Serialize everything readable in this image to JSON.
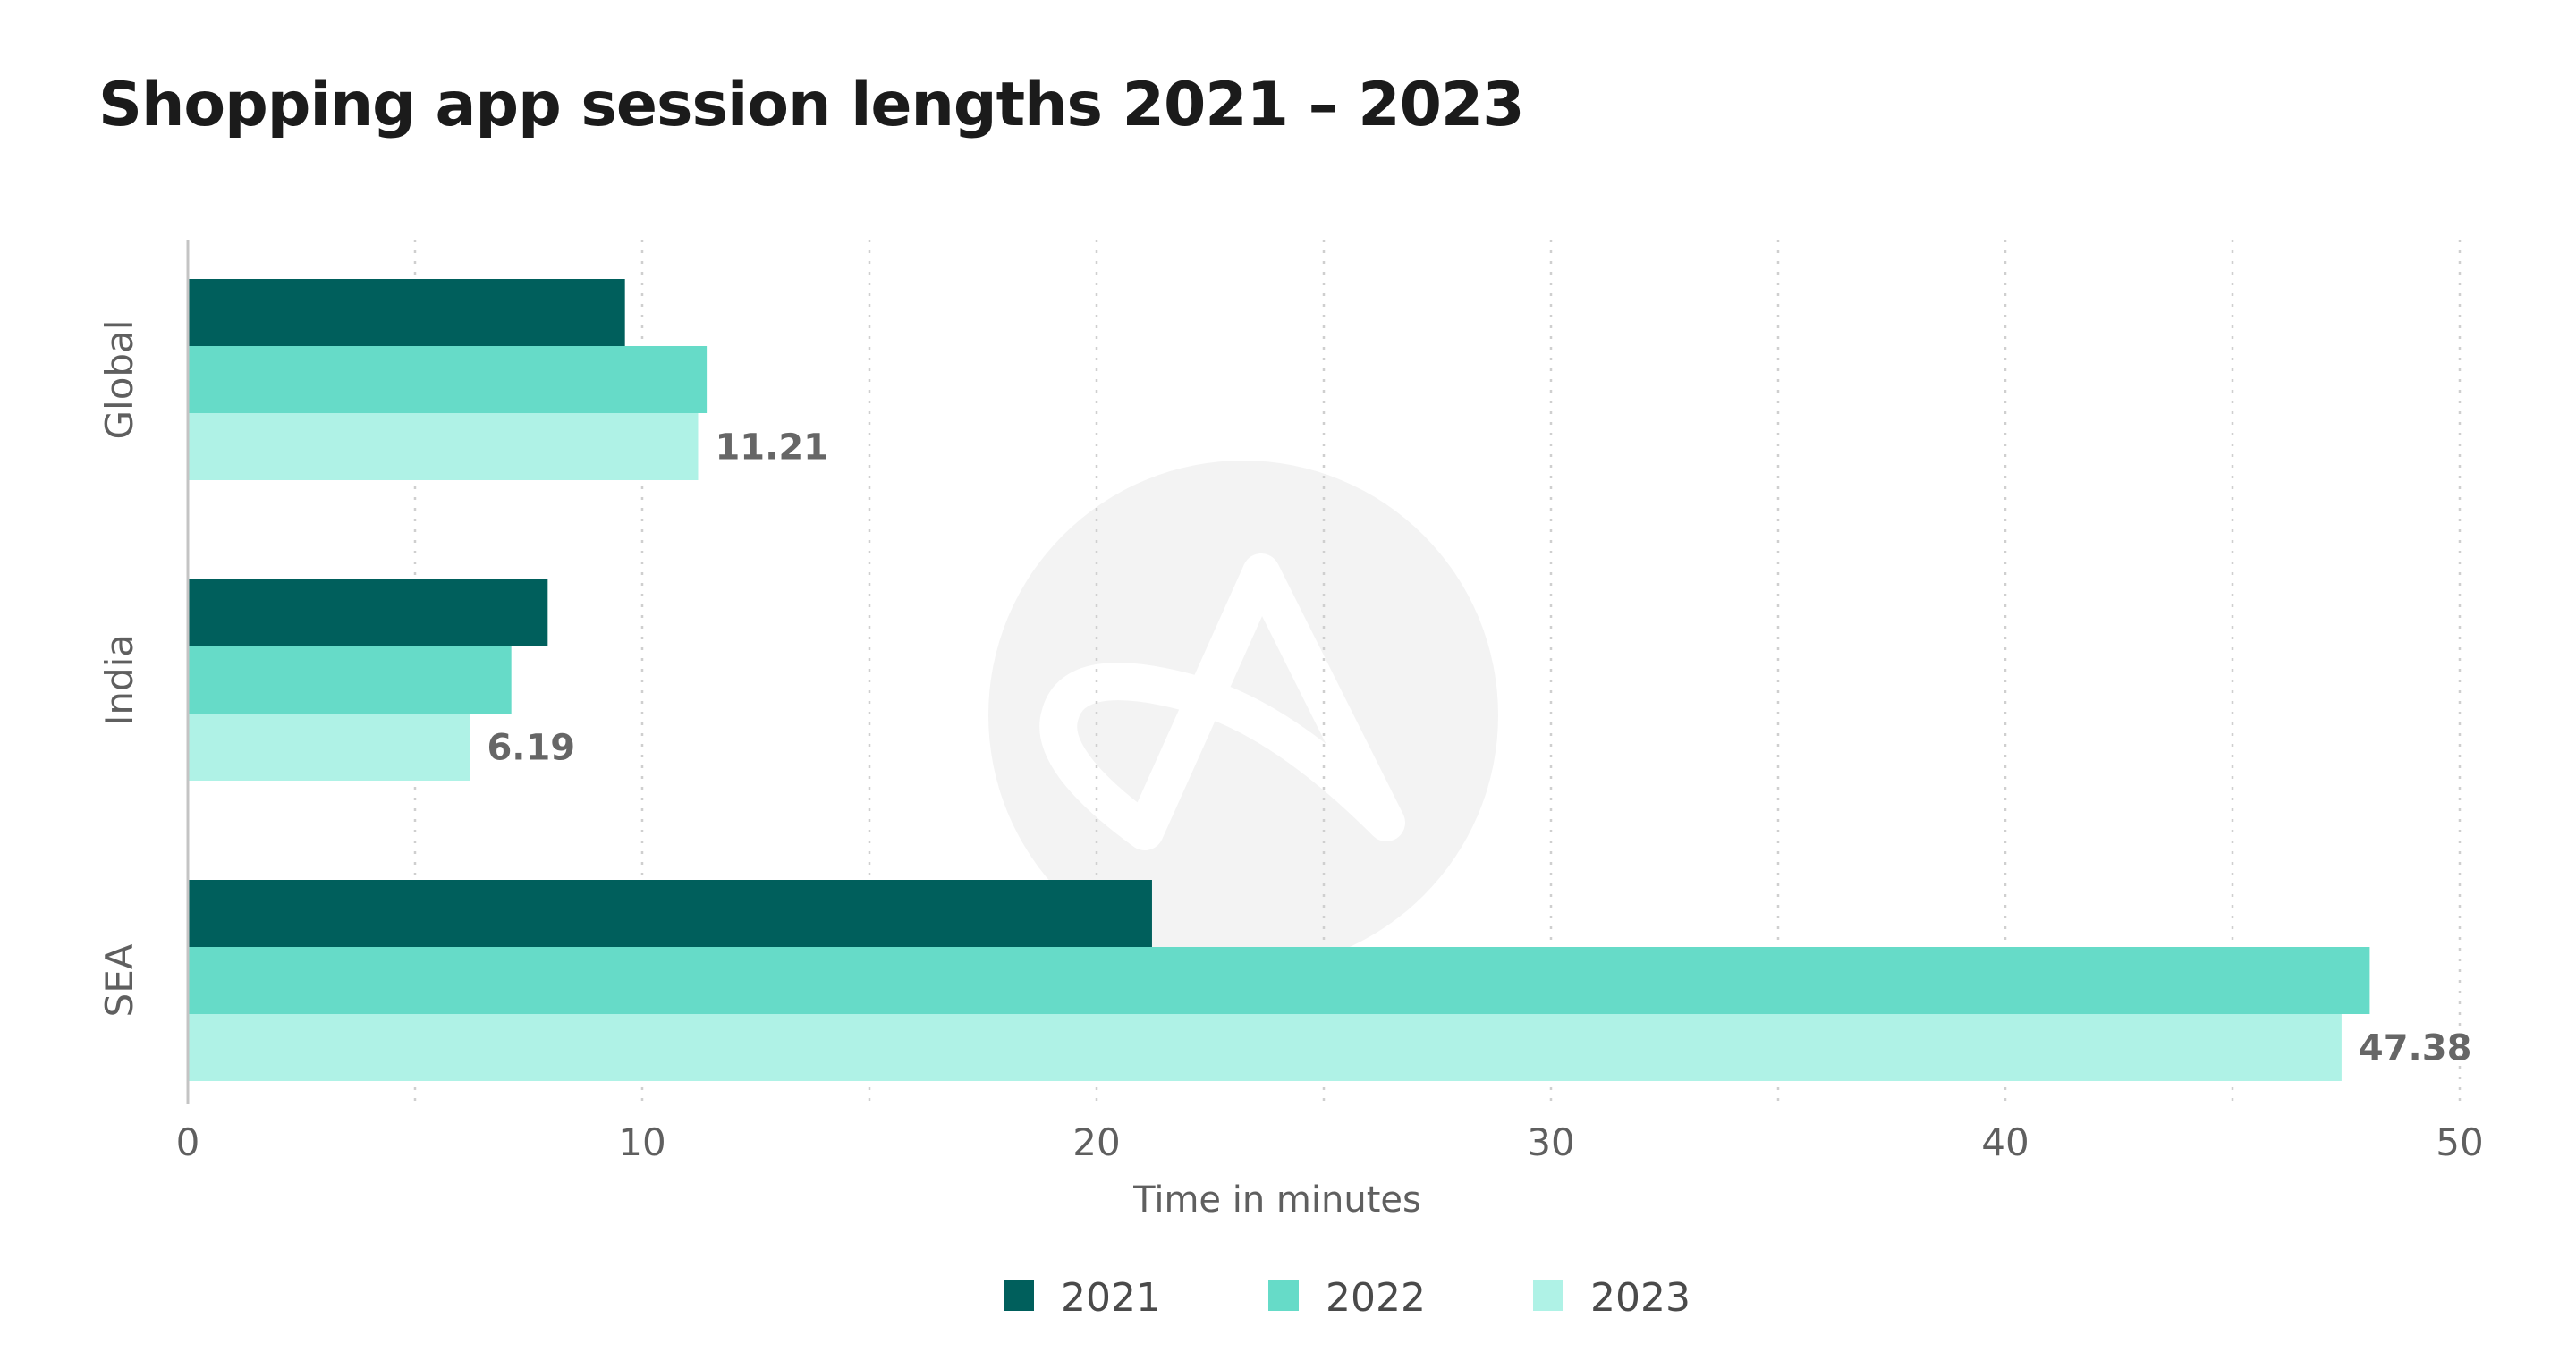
{
  "chart_data": {
    "type": "bar",
    "orientation": "horizontal",
    "title": "Shopping app session lengths 2021 – 2023",
    "xlabel": "Time in minutes",
    "ylabel": "",
    "categories": [
      "Global",
      "India",
      "SEA"
    ],
    "series": [
      {
        "name": "2021",
        "color": "#005f5c",
        "values": [
          9.6,
          7.9,
          21.2
        ]
      },
      {
        "name": "2022",
        "color": "#66dbc8",
        "values": [
          11.4,
          7.1,
          48.0
        ]
      },
      {
        "name": "2023",
        "color": "#aff2e6",
        "values": [
          11.21,
          6.19,
          47.38
        ]
      }
    ],
    "data_labels": {
      "series": "2023",
      "values": [
        "11.21",
        "6.19",
        "47.38"
      ]
    },
    "xlim": [
      0,
      50
    ],
    "xticks": [
      0,
      10,
      20,
      30,
      40,
      50
    ],
    "grid": "vertical dotted",
    "legend_position": "bottom-center"
  }
}
